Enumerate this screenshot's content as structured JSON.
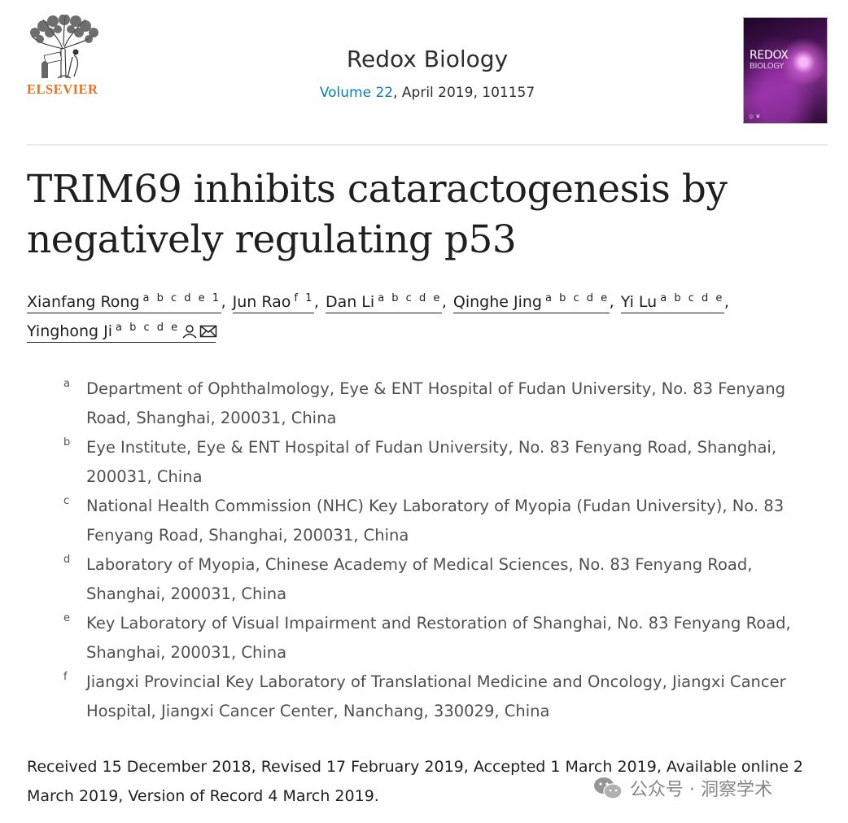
{
  "publisher": {
    "name": "ELSEVIER"
  },
  "journal": {
    "name": "Redox Biology",
    "volume_link": "Volume 22",
    "details": ", April 2019, 101157",
    "cover_title_line1": "REDOX",
    "cover_title_line2": "BIOLOGY"
  },
  "article": {
    "title": "TRIM69 inhibits cataractogenesis by negatively regulating p53"
  },
  "authors": [
    {
      "name": "Xianfang Rong",
      "sup": "a b c d e 1"
    },
    {
      "name": "Jun Rao",
      "sup": "f 1"
    },
    {
      "name": "Dan Li",
      "sup": "a b c d e"
    },
    {
      "name": "Qinghe Jing",
      "sup": "a b c d e"
    },
    {
      "name": "Yi Lu",
      "sup": "a b c d e"
    },
    {
      "name": "Yinghong Ji",
      "sup": "a b c d e",
      "icons": [
        "person-icon",
        "email-icon"
      ]
    }
  ],
  "affiliations": [
    {
      "label": "a",
      "text": "Department of Ophthalmology, Eye & ENT Hospital of Fudan University, No. 83 Fenyang Road, Shanghai, 200031, China"
    },
    {
      "label": "b",
      "text": "Eye Institute, Eye & ENT Hospital of Fudan University, No. 83 Fenyang Road, Shanghai, 200031, China"
    },
    {
      "label": "c",
      "text": "National Health Commission (NHC) Key Laboratory of Myopia (Fudan University), No. 83 Fenyang Road, Shanghai, 200031, China"
    },
    {
      "label": "d",
      "text": "Laboratory of Myopia, Chinese Academy of Medical Sciences, No. 83 Fenyang Road, Shanghai, 200031, China"
    },
    {
      "label": "e",
      "text": "Key Laboratory of Visual Impairment and Restoration of Shanghai, No. 83 Fenyang Road, Shanghai, 200031, China"
    },
    {
      "label": "f",
      "text": "Jiangxi Provincial Key Laboratory of Translational Medicine and Oncology, Jiangxi Cancer Hospital, Jiangxi Cancer Center, Nanchang, 330029, China"
    }
  ],
  "history": "Received 15 December 2018, Revised 17 February 2019, Accepted 1 March 2019, Available online 2 March 2019, Version of Record 4 March 2019.",
  "watermark": {
    "text": "公众号 · 洞察学术",
    "icon": "wechat-icon"
  },
  "colors": {
    "publisher_orange": "#e9711c",
    "link_blue": "#0c7dbb",
    "text_dark": "#1f1f1f",
    "text_gray": "#505050"
  }
}
